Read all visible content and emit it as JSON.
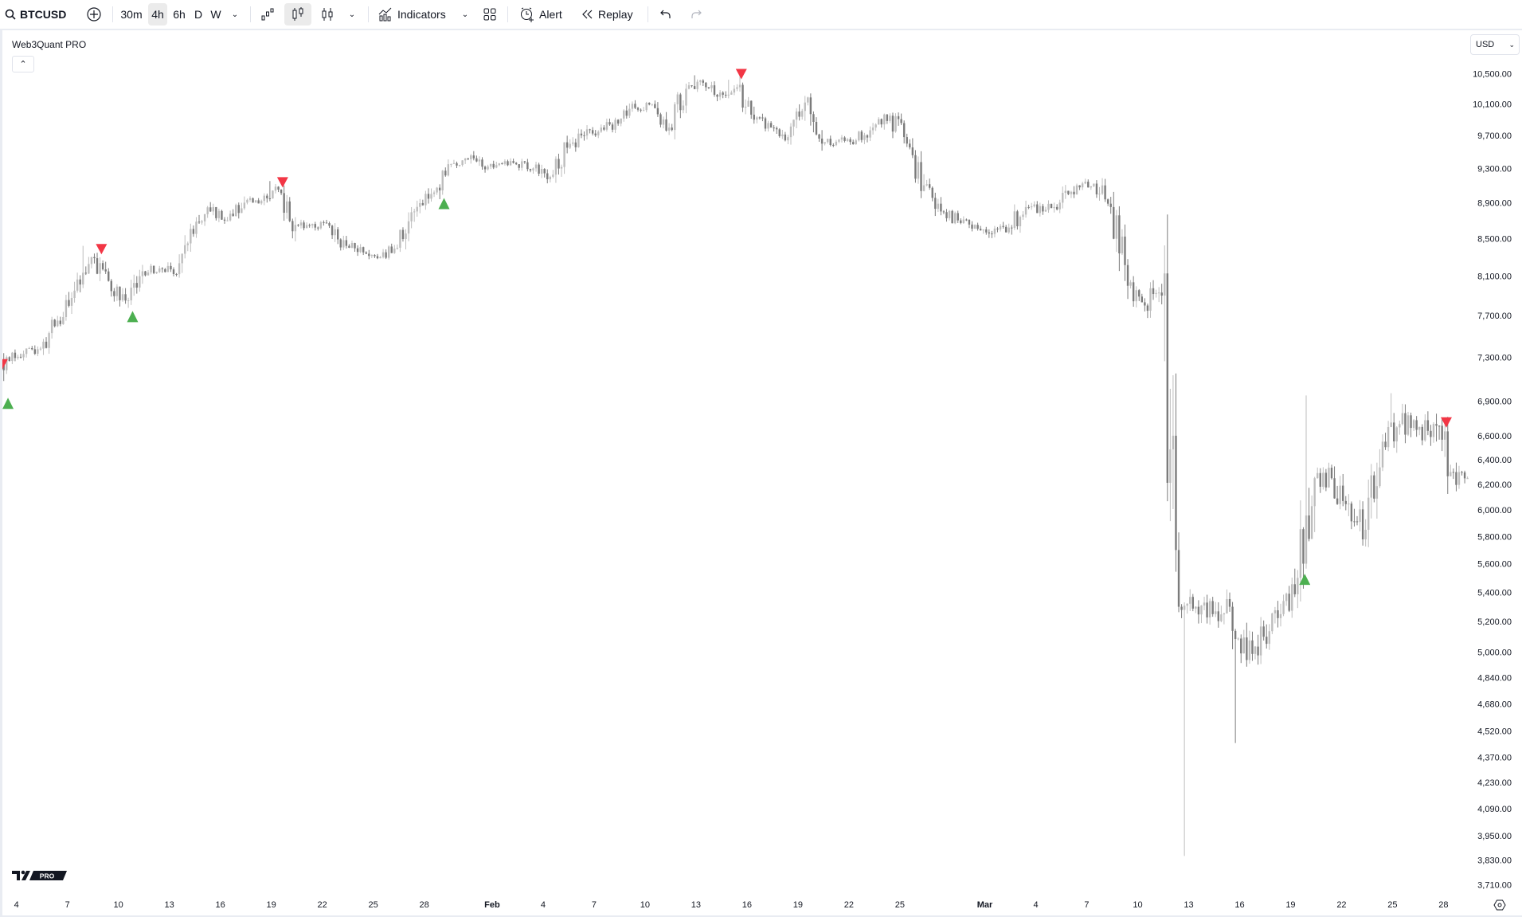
{
  "toolbar": {
    "symbol": "BTCUSD",
    "intervals": [
      "30m",
      "4h",
      "6h",
      "D",
      "W"
    ],
    "active_interval": "4h",
    "indicators_label": "Indicators",
    "alert_label": "Alert",
    "replay_label": "Replay"
  },
  "legend": {
    "title": "Web3Quant PRO"
  },
  "currency": "USD",
  "logo_badge": "PRO",
  "colors": {
    "up": "#bdbdbd",
    "down": "#7b7b7b",
    "buy_signal": "#4caf50",
    "sell_signal": "#f23645"
  },
  "chart_data": {
    "type": "candlestick",
    "symbol": "BTCUSD",
    "interval": "4h",
    "y_scale": "log",
    "ylim": [
      3650,
      10700
    ],
    "price_ticks": [
      "10,500.00",
      "10,100.00",
      "9,700.00",
      "9,300.00",
      "8,900.00",
      "8,500.00",
      "8,100.00",
      "7,700.00",
      "7,300.00",
      "6,900.00",
      "6,600.00",
      "6,400.00",
      "6,200.00",
      "6,000.00",
      "5,800.00",
      "5,600.00",
      "5,400.00",
      "5,200.00",
      "5,000.00",
      "4,840.00",
      "4,680.00",
      "4,520.00",
      "4,370.00",
      "4,230.00",
      "4,090.00",
      "3,950.00",
      "3,830.00",
      "3,710.00"
    ],
    "time_ticks": [
      {
        "label": "4",
        "date": "2020-01-04"
      },
      {
        "label": "7",
        "date": "2020-01-07"
      },
      {
        "label": "10",
        "date": "2020-01-10"
      },
      {
        "label": "13",
        "date": "2020-01-13"
      },
      {
        "label": "16",
        "date": "2020-01-16"
      },
      {
        "label": "19",
        "date": "2020-01-19"
      },
      {
        "label": "22",
        "date": "2020-01-22"
      },
      {
        "label": "25",
        "date": "2020-01-25"
      },
      {
        "label": "28",
        "date": "2020-01-28"
      },
      {
        "label": "Feb",
        "date": "2020-02-01"
      },
      {
        "label": "4",
        "date": "2020-02-04"
      },
      {
        "label": "7",
        "date": "2020-02-07"
      },
      {
        "label": "10",
        "date": "2020-02-10"
      },
      {
        "label": "13",
        "date": "2020-02-13"
      },
      {
        "label": "16",
        "date": "2020-02-16"
      },
      {
        "label": "19",
        "date": "2020-02-19"
      },
      {
        "label": "22",
        "date": "2020-02-22"
      },
      {
        "label": "25",
        "date": "2020-02-25"
      },
      {
        "label": "Mar",
        "date": "2020-03-01"
      },
      {
        "label": "4",
        "date": "2020-03-04"
      },
      {
        "label": "7",
        "date": "2020-03-07"
      },
      {
        "label": "10",
        "date": "2020-03-10"
      },
      {
        "label": "13",
        "date": "2020-03-13"
      },
      {
        "label": "16",
        "date": "2020-03-16"
      },
      {
        "label": "19",
        "date": "2020-03-19"
      },
      {
        "label": "22",
        "date": "2020-03-22"
      },
      {
        "label": "25",
        "date": "2020-03-25"
      },
      {
        "label": "28",
        "date": "2020-03-28"
      }
    ],
    "start_open": 6950,
    "daily_close": [
      {
        "date": "2020-01-03",
        "close": 7300
      },
      {
        "date": "2020-01-04",
        "close": 7330
      },
      {
        "date": "2020-01-05",
        "close": 7380
      },
      {
        "date": "2020-01-06",
        "close": 7650
      },
      {
        "date": "2020-01-07",
        "close": 7950
      },
      {
        "date": "2020-01-08",
        "close": 8300,
        "high": 8420
      },
      {
        "date": "2020-01-09",
        "close": 8050
      },
      {
        "date": "2020-01-10",
        "close": 7850
      },
      {
        "date": "2020-01-11",
        "close": 8150
      },
      {
        "date": "2020-01-12",
        "close": 8180
      },
      {
        "date": "2020-01-13",
        "close": 8120
      },
      {
        "date": "2020-01-14",
        "close": 8550
      },
      {
        "date": "2020-01-15",
        "close": 8800
      },
      {
        "date": "2020-01-16",
        "close": 8700
      },
      {
        "date": "2020-01-17",
        "close": 8900
      },
      {
        "date": "2020-01-18",
        "close": 8920
      },
      {
        "date": "2020-01-19",
        "close": 9050,
        "high": 9150
      },
      {
        "date": "2020-01-20",
        "close": 8650
      },
      {
        "date": "2020-01-21",
        "close": 8660
      },
      {
        "date": "2020-01-22",
        "close": 8640
      },
      {
        "date": "2020-01-23",
        "close": 8420
      },
      {
        "date": "2020-01-24",
        "close": 8350
      },
      {
        "date": "2020-01-25",
        "close": 8300
      },
      {
        "date": "2020-01-26",
        "close": 8400
      },
      {
        "date": "2020-01-27",
        "close": 8800
      },
      {
        "date": "2020-01-28",
        "close": 9000
      },
      {
        "date": "2020-01-29",
        "close": 9350
      },
      {
        "date": "2020-01-30",
        "close": 9420
      },
      {
        "date": "2020-01-31",
        "close": 9320
      },
      {
        "date": "2020-02-01",
        "close": 9360
      },
      {
        "date": "2020-02-02",
        "close": 9350
      },
      {
        "date": "2020-02-03",
        "close": 9300
      },
      {
        "date": "2020-02-04",
        "close": 9200
      },
      {
        "date": "2020-02-05",
        "close": 9550
      },
      {
        "date": "2020-02-06",
        "close": 9700
      },
      {
        "date": "2020-02-07",
        "close": 9800
      },
      {
        "date": "2020-02-08",
        "close": 9850
      },
      {
        "date": "2020-02-09",
        "close": 10050
      },
      {
        "date": "2020-02-10",
        "close": 10100
      },
      {
        "date": "2020-02-11",
        "close": 9800
      },
      {
        "date": "2020-02-12",
        "close": 10300
      },
      {
        "date": "2020-02-13",
        "close": 10380,
        "high": 10480
      },
      {
        "date": "2020-02-14",
        "close": 10250
      },
      {
        "date": "2020-02-15",
        "close": 10320,
        "high": 10420
      },
      {
        "date": "2020-02-16",
        "close": 9900
      },
      {
        "date": "2020-02-17",
        "close": 9800
      },
      {
        "date": "2020-02-18",
        "close": 9680
      },
      {
        "date": "2020-02-19",
        "close": 10120
      },
      {
        "date": "2020-02-20",
        "close": 9600
      },
      {
        "date": "2020-02-21",
        "close": 9650
      },
      {
        "date": "2020-02-22",
        "close": 9640
      },
      {
        "date": "2020-02-23",
        "close": 9800
      },
      {
        "date": "2020-02-24",
        "close": 9950
      },
      {
        "date": "2020-02-25",
        "close": 9600
      },
      {
        "date": "2020-02-26",
        "close": 9100
      },
      {
        "date": "2020-02-27",
        "close": 8800
      },
      {
        "date": "2020-02-28",
        "close": 8700
      },
      {
        "date": "2020-02-29",
        "close": 8650
      },
      {
        "date": "2020-03-01",
        "close": 8550
      },
      {
        "date": "2020-03-02",
        "close": 8620
      },
      {
        "date": "2020-03-03",
        "close": 8850
      },
      {
        "date": "2020-03-04",
        "close": 8800
      },
      {
        "date": "2020-03-05",
        "close": 8900
      },
      {
        "date": "2020-03-06",
        "close": 9100
      },
      {
        "date": "2020-03-07",
        "close": 9120
      },
      {
        "date": "2020-03-08",
        "close": 8850
      },
      {
        "date": "2020-03-09",
        "close": 8000
      },
      {
        "date": "2020-03-10",
        "close": 7800
      },
      {
        "date": "2020-03-11",
        "close": 7900
      },
      {
        "date": "2020-03-12",
        "close": 5300
      },
      {
        "date": "2020-03-13",
        "close": 5300,
        "low": 3850
      },
      {
        "date": "2020-03-14",
        "close": 5250
      },
      {
        "date": "2020-03-15",
        "close": 5300
      },
      {
        "date": "2020-03-16",
        "close": 4950,
        "low": 4450
      },
      {
        "date": "2020-03-17",
        "close": 5100
      },
      {
        "date": "2020-03-18",
        "close": 5250
      },
      {
        "date": "2020-03-19",
        "close": 5500
      },
      {
        "date": "2020-03-20",
        "close": 6250,
        "high": 6950
      },
      {
        "date": "2020-03-21",
        "close": 6250
      },
      {
        "date": "2020-03-22",
        "close": 6050
      },
      {
        "date": "2020-03-23",
        "close": 5850
      },
      {
        "date": "2020-03-24",
        "close": 6550
      },
      {
        "date": "2020-03-25",
        "close": 6700,
        "high": 6970
      },
      {
        "date": "2020-03-26",
        "close": 6650
      },
      {
        "date": "2020-03-27",
        "close": 6700
      },
      {
        "date": "2020-03-28",
        "close": 6300
      },
      {
        "date": "2020-03-29",
        "close": 6250
      }
    ],
    "signals": [
      {
        "type": "sell",
        "date": "2020-01-03T04:00",
        "price": 7230
      },
      {
        "type": "buy",
        "date": "2020-01-03T12:00",
        "price": 6880
      },
      {
        "type": "sell",
        "date": "2020-01-09T00:00",
        "price": 8380
      },
      {
        "type": "buy",
        "date": "2020-01-10T20:00",
        "price": 7690
      },
      {
        "type": "sell",
        "date": "2020-01-19T16:00",
        "price": 9130
      },
      {
        "type": "buy",
        "date": "2020-01-29T04:00",
        "price": 8890
      },
      {
        "type": "sell",
        "date": "2020-02-15T16:00",
        "price": 10490
      },
      {
        "type": "buy",
        "date": "2020-03-19T20:00",
        "price": 5490
      },
      {
        "type": "sell",
        "date": "2020-03-28T04:00",
        "price": 6710
      }
    ]
  }
}
